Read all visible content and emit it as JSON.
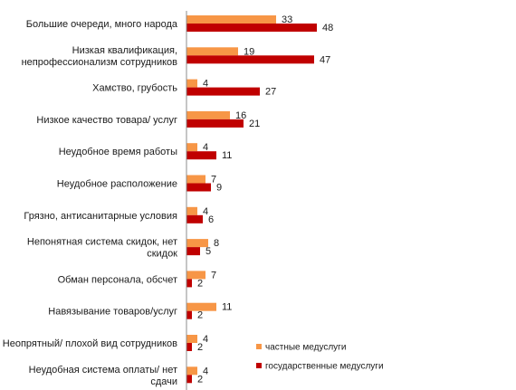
{
  "chart_data": {
    "type": "bar",
    "orientation": "horizontal",
    "categories": [
      [
        "Большие очереди, много народа"
      ],
      [
        "Низкая квалификация,",
        "непрофессионализм сотрудников"
      ],
      [
        "Хамство, грубость"
      ],
      [
        "Низкое качество товара/ услуг"
      ],
      [
        "Неудобное время работы"
      ],
      [
        "Неудобное расположение"
      ],
      [
        "Грязно, антисанитарные условия"
      ],
      [
        "Непонятная система скидок, нет",
        "скидок"
      ],
      [
        "Обман персонала, обсчет"
      ],
      [
        "Навязывание товаров/услуг"
      ],
      [
        "Неопрятный/ плохой вид сотрудников"
      ],
      [
        "Неудобная система оплаты/ нет",
        "сдачи"
      ]
    ],
    "series": [
      {
        "name": "частные медуслуги",
        "color": "#F79646",
        "values": [
          33,
          19,
          4,
          16,
          4,
          7,
          4,
          8,
          7,
          11,
          4,
          4
        ]
      },
      {
        "name": "государственные  медуслуги",
        "color": "#C00000",
        "values": [
          48,
          47,
          27,
          21,
          11,
          9,
          6,
          5,
          2,
          2,
          2,
          2
        ]
      }
    ],
    "xlim": [
      0,
      55
    ],
    "grid": false,
    "legend_position": "bottom-right"
  }
}
